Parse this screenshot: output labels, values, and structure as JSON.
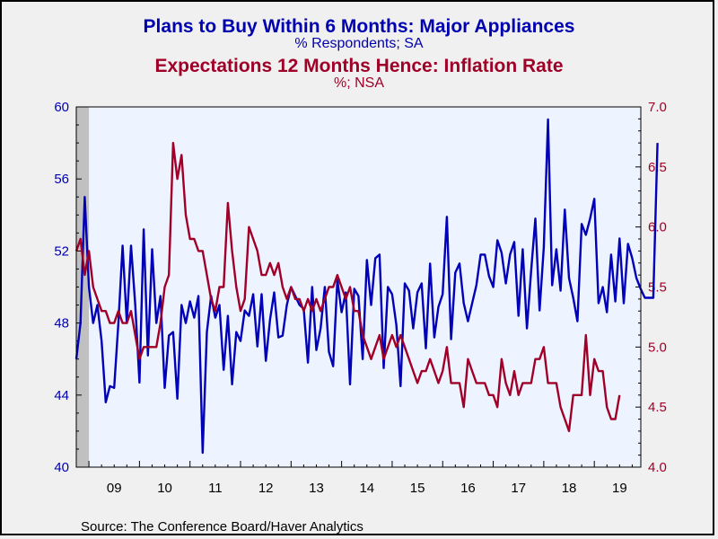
{
  "header": {
    "title1": "Plans to Buy Within 6 Months: Major Appliances",
    "subtitle1": "% Respondents; SA",
    "title2": "Expectations 12 Months Hence: Inflation Rate",
    "subtitle2": "%; NSA"
  },
  "source": "Source:  The Conference Board/Haver Analytics",
  "colors": {
    "series_blue": "#0000b8",
    "series_red": "#a00028",
    "plot_bg": "#eef4ff",
    "recession_shade": "#c0c0c0"
  },
  "chart_data": {
    "type": "line",
    "x_tick_labels": [
      "09",
      "10",
      "11",
      "12",
      "13",
      "14",
      "15",
      "16",
      "17",
      "18",
      "19"
    ],
    "left_axis": {
      "ylim": [
        40,
        60
      ],
      "ticks": [
        "40",
        "44",
        "48",
        "52",
        "56",
        "60"
      ]
    },
    "right_axis": {
      "ylim": [
        4.0,
        7.0
      ],
      "ticks": [
        "4.0",
        "4.5",
        "5.0",
        "5.5",
        "6.0",
        "6.5",
        "7.0"
      ]
    },
    "x_range": [
      2008.75,
      2019.92
    ],
    "recession_shade": [
      2008.75,
      2009.0
    ],
    "grid": false,
    "series": [
      {
        "name": "Plans to Buy Within 6 Months: Major Appliances",
        "axis": "left",
        "x_start": 2008.75,
        "x_step": 0.08333,
        "values": [
          46,
          48,
          55,
          50,
          48,
          49,
          47,
          43.6,
          44.5,
          44.4,
          48,
          52.3,
          48,
          52.3,
          49,
          44.7,
          53.2,
          46.2,
          52.1,
          48,
          49.5,
          44.4,
          47.3,
          47.5,
          43.8,
          49,
          48,
          49.2,
          48.3,
          49.5,
          40.8,
          47.5,
          49.5,
          48.3,
          49,
          45.4,
          48.4,
          44.6,
          47.5,
          47,
          48.7,
          48.4,
          49.6,
          46.7,
          49.6,
          45.9,
          48.2,
          49.7,
          47.2,
          47.3,
          49,
          50,
          49.5,
          49,
          48.8,
          45.8,
          50,
          46.5,
          47.7,
          50,
          46.4,
          45.6,
          50.4,
          48.6,
          49.7,
          44.6,
          49.9,
          49.5,
          46,
          51.5,
          49,
          51.6,
          51.8,
          45.5,
          50,
          49.6,
          47.9,
          44.5,
          50.2,
          49.8,
          47.7,
          49.7,
          50.2,
          46.6,
          51.3,
          47.2,
          48.9,
          49.6,
          53.9,
          47.1,
          50.8,
          51.3,
          49.1,
          48.1,
          49.1,
          50.1,
          51.8,
          51.8,
          50.6,
          50,
          52.6,
          51.9,
          50.2,
          51.8,
          52.5,
          48.4,
          52.1,
          47.7,
          50.9,
          53.8,
          48.7,
          52.2,
          59.3,
          50.1,
          52.1,
          49.8,
          54.3,
          50.5,
          49.4,
          48.1,
          53.5,
          52.9,
          53.8,
          54.9,
          49.1,
          50,
          48.6,
          51.8,
          49.2,
          52.7,
          49.1,
          52.4,
          51.6,
          50.5,
          49.9,
          49.4,
          49.4,
          49.4,
          58
        ],
        "color": "#0000b8"
      },
      {
        "name": "Expectations 12 Months Hence: Inflation Rate",
        "axis": "right",
        "x_start": 2008.75,
        "x_step": 0.08333,
        "values": [
          5.8,
          5.9,
          5.6,
          5.8,
          5.5,
          5.4,
          5.3,
          5.3,
          5.2,
          5.2,
          5.3,
          5.2,
          5.2,
          5.3,
          5.1,
          4.9,
          5,
          5,
          5,
          5,
          5.2,
          5.5,
          5.6,
          6.7,
          6.4,
          6.6,
          6.1,
          5.9,
          5.9,
          5.8,
          5.8,
          5.6,
          5.4,
          5.3,
          5.5,
          5.5,
          6.2,
          5.8,
          5.5,
          5.3,
          5.4,
          6.0,
          5.9,
          5.8,
          5.6,
          5.6,
          5.7,
          5.6,
          5.7,
          5.5,
          5.4,
          5.5,
          5.4,
          5.4,
          5.3,
          5.4,
          5.3,
          5.4,
          5.3,
          5.4,
          5.5,
          5.5,
          5.6,
          5.5,
          5.4,
          5.5,
          5.3,
          5.3,
          5.1,
          5,
          4.9,
          5,
          5.1,
          4.9,
          5,
          5.1,
          5,
          5.1,
          5,
          4.9,
          4.8,
          4.7,
          4.8,
          4.8,
          4.9,
          4.8,
          4.7,
          4.8,
          5,
          4.7,
          4.7,
          4.7,
          4.5,
          4.9,
          4.8,
          4.7,
          4.7,
          4.7,
          4.6,
          4.6,
          4.5,
          4.9,
          4.7,
          4.6,
          4.8,
          4.6,
          4.7,
          4.7,
          4.7,
          4.9,
          4.9,
          5,
          4.7,
          4.7,
          4.7,
          4.5,
          4.4,
          4.3,
          4.6,
          4.6,
          4.6,
          5.1,
          4.6,
          4.9,
          4.8,
          4.8,
          4.5,
          4.4,
          4.4,
          4.6
        ],
        "color": "#a00028"
      }
    ]
  }
}
